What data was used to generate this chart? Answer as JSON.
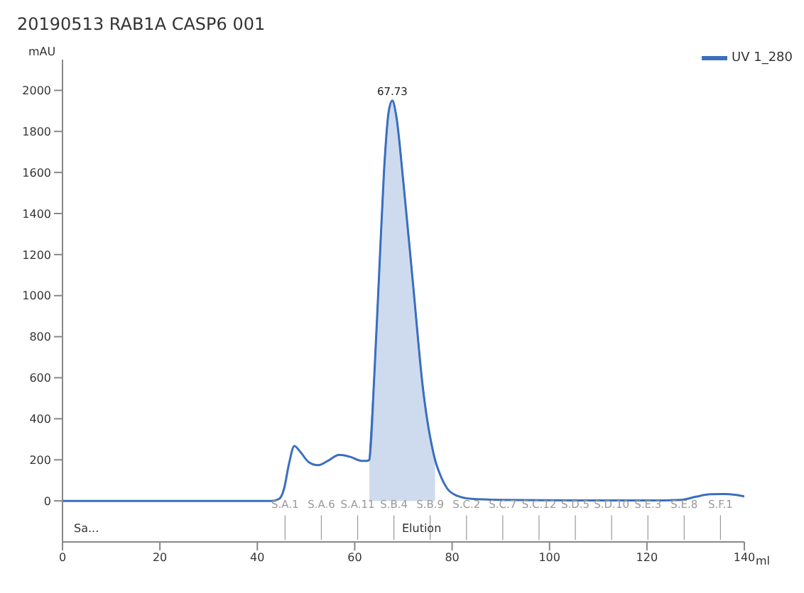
{
  "chart_data": {
    "type": "line",
    "title": "20190513 RAB1A CASP6 001",
    "xlabel": "ml",
    "ylabel": "mAU",
    "xlim": [
      0,
      140
    ],
    "xticks": [
      0,
      20,
      40,
      60,
      80,
      100,
      120,
      140
    ],
    "ylim": [
      -200,
      2150
    ],
    "yticks": [
      0,
      200,
      400,
      600,
      800,
      1000,
      1200,
      1400,
      1600,
      1800,
      2000
    ],
    "grid": false,
    "legend": "top right",
    "marker": "none",
    "line_style": "solid",
    "series": [
      {
        "name": "UV 1_280",
        "color": "#3a6fbf",
        "x": [
          0,
          43,
          44.5,
          45.5,
          46.5,
          47.6,
          48.8,
          50.5,
          52.5,
          54.5,
          56.8,
          59,
          61.5,
          62.5,
          63,
          64,
          65,
          66,
          67,
          67.73,
          68.5,
          70,
          72,
          74,
          76,
          76.5,
          77.5,
          79,
          81,
          84,
          90,
          100,
          110,
          120,
          127,
          130,
          133,
          136,
          138,
          140
        ],
        "values": [
          0,
          0,
          10,
          60,
          180,
          267,
          240,
          190,
          174,
          195,
          224,
          215,
          195,
          195,
          200,
          600,
          1100,
          1600,
          1900,
          1950,
          1880,
          1550,
          1050,
          550,
          250,
          200,
          130,
          60,
          25,
          10,
          5,
          3,
          2,
          2,
          5,
          20,
          32,
          33,
          30,
          22
        ]
      },
      {
        "color": "#3a6fbf",
        "type": "area",
        "x": [
          63,
          64,
          65,
          66,
          67,
          67.73,
          68.5,
          70,
          72,
          74,
          76,
          76.5
        ],
        "values": [
          200,
          600,
          1100,
          1600,
          1900,
          1950,
          1880,
          1550,
          1050,
          550,
          250,
          200
        ]
      }
    ],
    "ref_lines": [
      {
        "axis": "x",
        "value": 45.7,
        "label": "S.A.1",
        "color": "#999999"
      },
      {
        "axis": "x",
        "value": 53.15,
        "label": "S.A.6",
        "color": "#999999"
      },
      {
        "axis": "x",
        "value": 60.6,
        "label": "S.A.11",
        "color": "#999999"
      },
      {
        "axis": "x",
        "value": 68.05,
        "label": "S.B.4",
        "color": "#999999"
      },
      {
        "axis": "x",
        "value": 75.5,
        "label": "S.B.9",
        "color": "#999999"
      },
      {
        "axis": "x",
        "value": 82.95,
        "label": "S.C.2",
        "color": "#999999"
      },
      {
        "axis": "x",
        "value": 90.4,
        "label": "S.C.7",
        "color": "#999999"
      },
      {
        "axis": "x",
        "value": 97.85,
        "label": "S.C.12",
        "color": "#999999"
      },
      {
        "axis": "x",
        "value": 105.3,
        "label": "S.D.5",
        "color": "#999999"
      },
      {
        "axis": "x",
        "value": 112.75,
        "label": "S.D.10",
        "color": "#999999"
      },
      {
        "axis": "x",
        "value": 120.2,
        "label": "S.E.3",
        "color": "#999999"
      },
      {
        "axis": "x",
        "value": 127.65,
        "label": "S.E.8",
        "color": "#999999"
      },
      {
        "axis": "x",
        "value": 135.1,
        "label": "S.F.1",
        "color": "#999999"
      }
    ],
    "annotations": [
      {
        "text": "67.73",
        "x": 67.73,
        "y": 1950
      },
      "Sa...",
      "Elution"
    ]
  }
}
